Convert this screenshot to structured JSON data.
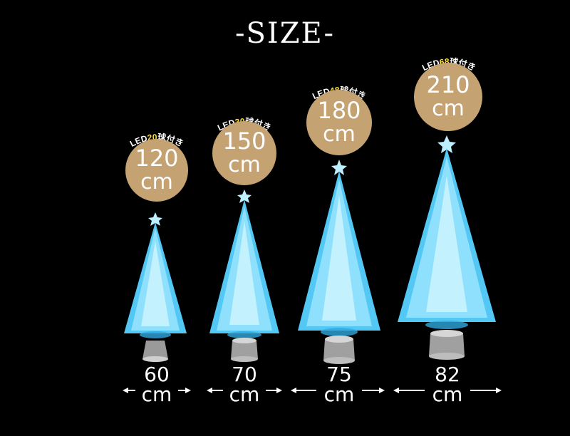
{
  "title": "-SIZE-",
  "colors": {
    "background": "#000000",
    "badge": "#c4a272",
    "led_highlight": "#ffe033",
    "tree_glow": "#6fd8ff"
  },
  "products": [
    {
      "led_prefix": "LED",
      "led_count": "20",
      "led_suffix": "球付き",
      "height_value": "120",
      "height_unit": "cm",
      "width_value": "60",
      "width_unit": "cm"
    },
    {
      "led_prefix": "LED",
      "led_count": "30",
      "led_suffix": "球付き",
      "height_value": "150",
      "height_unit": "cm",
      "width_value": "70",
      "width_unit": "cm"
    },
    {
      "led_prefix": "LED",
      "led_count": "48",
      "led_suffix": "球付き",
      "height_value": "180",
      "height_unit": "cm",
      "width_value": "75",
      "width_unit": "cm"
    },
    {
      "led_prefix": "LED",
      "led_count": "68",
      "led_suffix": "球付き",
      "height_value": "210",
      "height_unit": "cm",
      "width_value": "82",
      "width_unit": "cm"
    }
  ]
}
